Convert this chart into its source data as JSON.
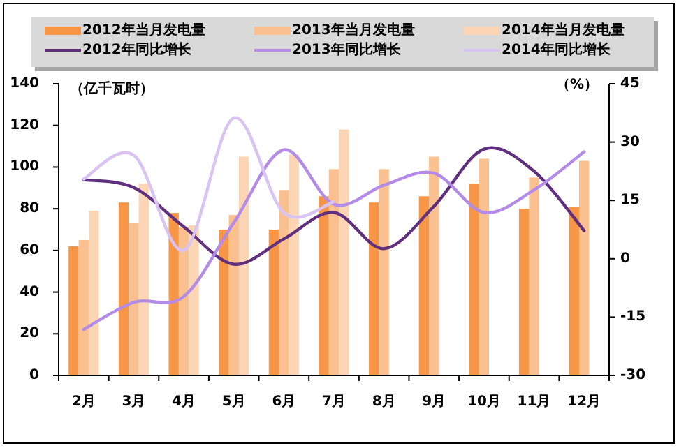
{
  "chart_data": {
    "type": "bar",
    "ylabel": "（亿千瓦时）",
    "y2label": "（%）",
    "legend": "top",
    "marker": "none",
    "line_style": "solid",
    "grid": false,
    "categories": [
      "2月",
      "3月",
      "4月",
      "5月",
      "6月",
      "7月",
      "8月",
      "9月",
      "10月",
      "11月",
      "12月"
    ],
    "ylim": [
      0,
      140
    ],
    "yticks": [
      0,
      20,
      40,
      60,
      80,
      100,
      120,
      140
    ],
    "y2lim": [
      -30,
      45
    ],
    "y2ticks": [
      -30,
      -15,
      0,
      15,
      30,
      45
    ],
    "series": [
      {
        "name": "2012年当月发电量",
        "color": "#f79646",
        "values": [
          62,
          83,
          78,
          70,
          70,
          86,
          83,
          86,
          92,
          80,
          81
        ]
      },
      {
        "name": "2013年当月发电量",
        "color": "#fac090",
        "values": [
          65,
          73,
          71,
          77,
          89,
          99,
          99,
          105,
          104,
          95,
          103
        ]
      },
      {
        "name": "2014年当月发电量",
        "color": "#fcd5b4",
        "values": [
          79,
          92,
          72,
          105,
          106,
          118,
          null,
          null,
          null,
          null,
          null
        ]
      },
      {
        "name": "2012年同比增长",
        "type": "line",
        "axis": "y2",
        "color": "#60307e",
        "values": [
          20.3,
          18.3,
          8.2,
          -1.4,
          5.1,
          11.9,
          2.6,
          13.5,
          28.2,
          22.5,
          7.2
        ]
      },
      {
        "name": "2013年同比增长",
        "type": "line",
        "axis": "y2",
        "color": "#b48ce8",
        "values": [
          -18.2,
          -11.2,
          -9.7,
          9.3,
          28,
          14,
          18.9,
          22,
          11.9,
          17.7,
          27.5
        ]
      },
      {
        "name": "2014年同比增长",
        "type": "line",
        "axis": "y2",
        "color": "#d9c3f2",
        "values": [
          20.5,
          26.6,
          2.2,
          36.2,
          11.8,
          14.7,
          null,
          null,
          null,
          null,
          null
        ]
      }
    ]
  }
}
